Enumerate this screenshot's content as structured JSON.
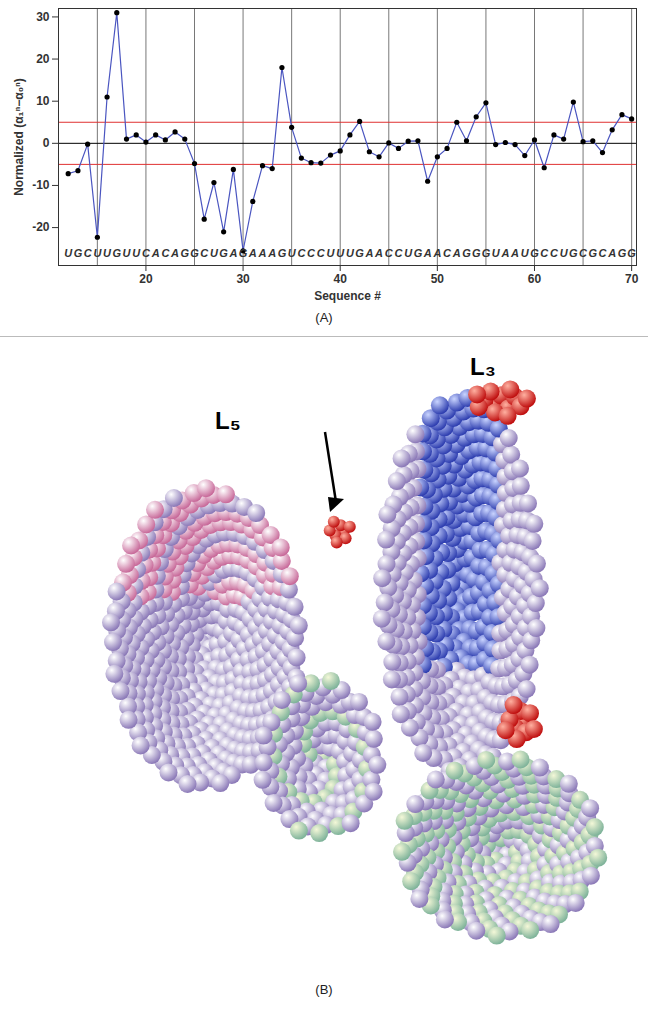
{
  "chart_data": {
    "type": "line",
    "caption": "(A)",
    "x_label": "Sequence #",
    "y_label": "Normalized (α₁ⁿ−α₀ⁿ)",
    "x": [
      12,
      13,
      14,
      15,
      16,
      17,
      18,
      19,
      20,
      21,
      22,
      23,
      24,
      25,
      26,
      27,
      28,
      29,
      30,
      31,
      32,
      33,
      34,
      35,
      36,
      37,
      38,
      39,
      40,
      41,
      42,
      43,
      44,
      45,
      46,
      47,
      48,
      49,
      50,
      51,
      52,
      53,
      54,
      55,
      56,
      57,
      58,
      59,
      60,
      61,
      62,
      63,
      64,
      65,
      66,
      67,
      68,
      69,
      70
    ],
    "values": [
      -7.2,
      -6.5,
      -0.2,
      -22.3,
      11,
      31,
      1,
      2,
      0.3,
      2,
      0.8,
      2.7,
      1,
      -4.8,
      -18,
      -9.3,
      -21,
      -6.2,
      -25.5,
      -13.8,
      -5.3,
      -6,
      18,
      3.8,
      -3.5,
      -4.6,
      -4.7,
      -2.8,
      -1.8,
      2,
      5.2,
      -2,
      -3.2,
      0.1,
      -1.2,
      0.5,
      0.6,
      -9,
      -3.2,
      -1.2,
      5,
      0.6,
      6.3,
      9.6,
      -0.3,
      0.2,
      -0.3,
      -2.9,
      0.8,
      -5.8,
      2,
      1,
      9.8,
      0.4,
      0.6,
      -2.2,
      3.2,
      6.8,
      5.8
    ],
    "sequence": "UGCUUGUUCACAGGCUGAGAAAGUCCCUUUGAACCUGAACAGGGUAAUGCCUGCGCAGG",
    "color": "#4a55c0",
    "marker": "circle",
    "xlim": [
      11,
      70.5
    ],
    "ylim": [
      -29,
      32
    ],
    "xticks": [
      20,
      30,
      40,
      50,
      60,
      70
    ],
    "yticks": [
      -20,
      -10,
      0,
      10,
      20,
      30
    ],
    "vlines": [
      15,
      20,
      25,
      30,
      35,
      40,
      45,
      50,
      55,
      60,
      65,
      70
    ],
    "zero_line": 0,
    "thresholds": [
      -5,
      5
    ]
  },
  "image": {
    "caption": "(B)",
    "labels": [
      "L₅",
      "L₃"
    ]
  }
}
